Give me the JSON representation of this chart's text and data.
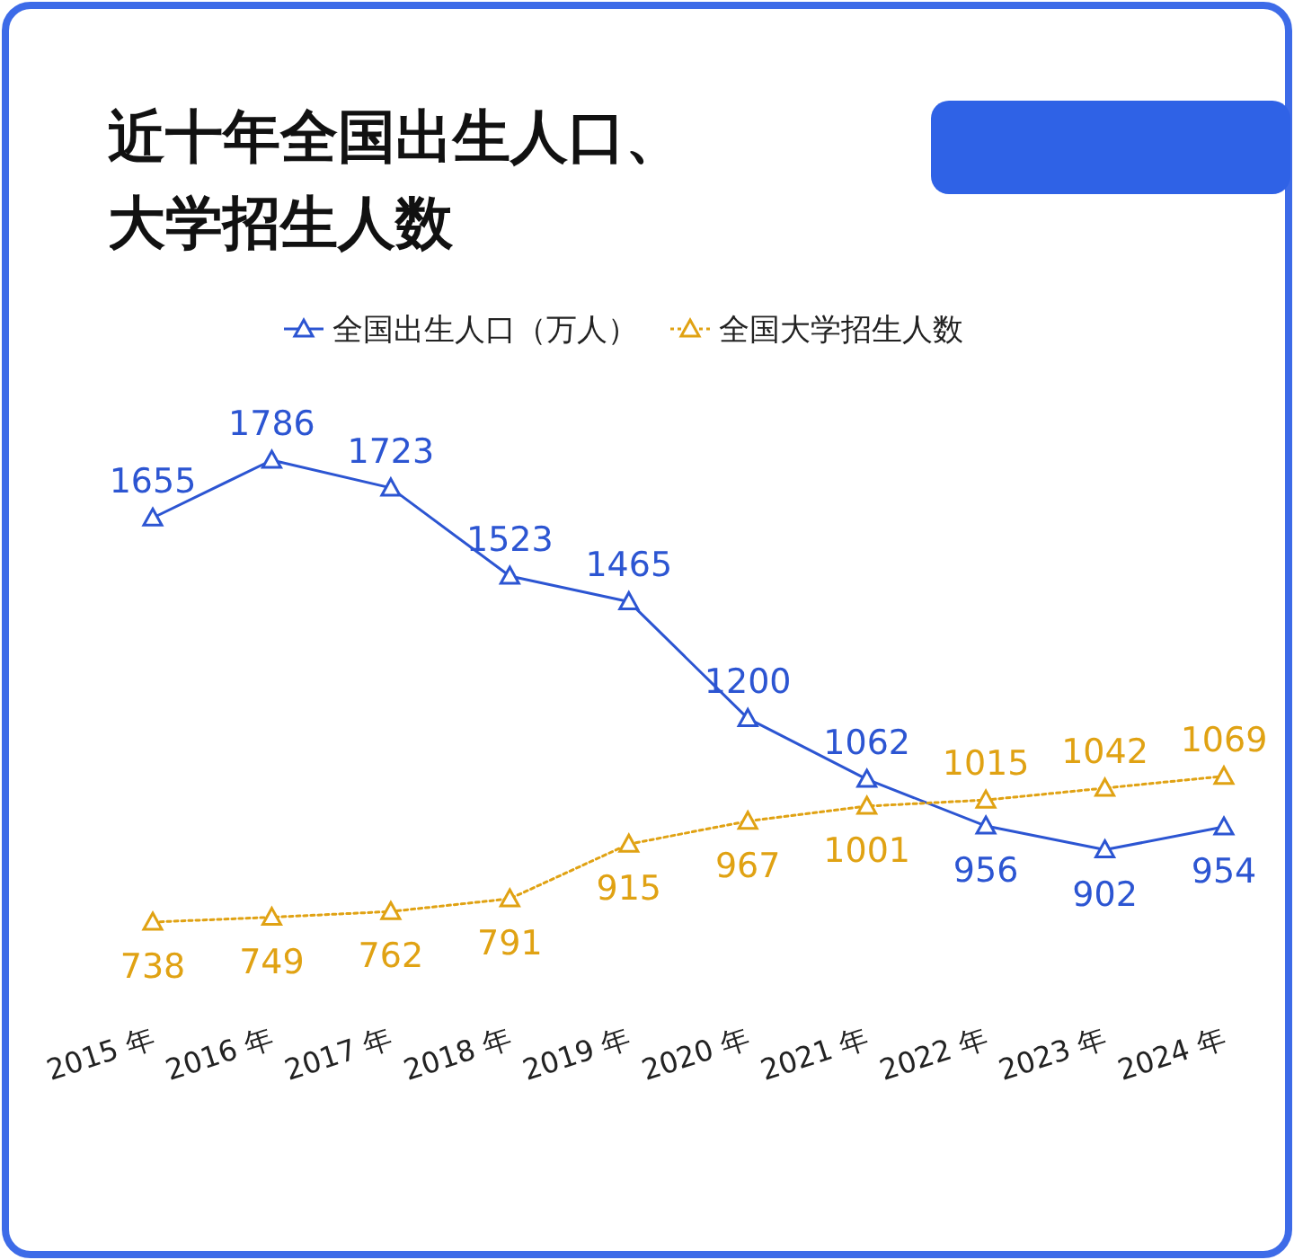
{
  "chart_data": {
    "type": "line",
    "title": "近十年全国出生人口、大学招生人数",
    "categories": [
      "2015 年",
      "2016 年",
      "2017 年",
      "2018 年",
      "2019 年",
      "2020 年",
      "2021 年",
      "2022 年",
      "2023 年",
      "2024 年"
    ],
    "series": [
      {
        "name": "全国出生人口（万人）",
        "color": "#2c55d2",
        "line_style": "solid",
        "values": [
          1655,
          1786,
          1723,
          1523,
          1465,
          1200,
          1062,
          956,
          902,
          954
        ]
      },
      {
        "name": "全国大学招生人数",
        "color": "#e0a213",
        "line_style": "dotted",
        "values": [
          738,
          749,
          762,
          791,
          915,
          967,
          1001,
          1015,
          1042,
          1069
        ]
      }
    ],
    "data_labels": true,
    "marker": "triangle",
    "legend": "top"
  }
}
